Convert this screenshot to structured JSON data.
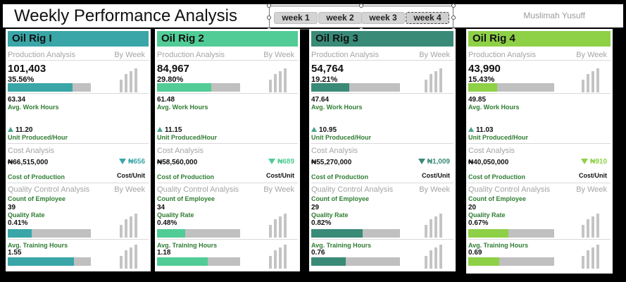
{
  "header": {
    "title": "Weekly Performance Analysis",
    "author": "Muslimah Yusuff",
    "weeks": [
      "week 1",
      "week 2",
      "week 3",
      "week 4"
    ],
    "selected_week": "week 4"
  },
  "common": {
    "production_analysis": "Production Analysis",
    "by_week": "By Week",
    "avg_work_hours": "Avg. Work Hours",
    "unit_produced_hour": "Unit Produced/Hour",
    "cost_analysis": "Cost Analysis",
    "cost_of_production": "Cost of Production",
    "cost_unit": "Cost/Unit",
    "quality_control_analysis": "Quality Control Analysis",
    "count_of_employee": "Count of Employee",
    "quality_rate": "Quality Rate",
    "avg_training_hours": "Avg. Training Hours"
  },
  "rigs": [
    {
      "name": "Oil Rig I",
      "color": "#3aa6a8",
      "production": "101,403",
      "production_pct": "35.56%",
      "production_fraction": 0.78,
      "avg_work_hours": "63.34",
      "unit_per_hour": "11.20",
      "cost_of_production": "₦66,515,000",
      "cost_per_unit": "₦656",
      "cost_unit_color": "#3aa6a8",
      "employees": "39",
      "quality_rate": "0.41%",
      "quality_fraction": 0.29,
      "training_hours": "1.55",
      "training_fraction": 0.8
    },
    {
      "name": "Oil Rig 2",
      "color": "#52cc96",
      "production": "84,967",
      "production_pct": "29.80%",
      "production_fraction": 0.65,
      "avg_work_hours": "61.48",
      "unit_per_hour": "11.15",
      "cost_of_production": "₦58,560,000",
      "cost_per_unit": "₦689",
      "cost_unit_color": "#52cc96",
      "employees": "34",
      "quality_rate": "0.48%",
      "quality_fraction": 0.34,
      "training_hours": "1.18",
      "training_fraction": 0.61
    },
    {
      "name": "Oil Rig 3",
      "color": "#3a8a78",
      "production": "54,764",
      "production_pct": "19.21%",
      "production_fraction": 0.43,
      "avg_work_hours": "47.64",
      "unit_per_hour": "10.95",
      "cost_of_production": "₦55,270,000",
      "cost_per_unit": "₦1,009",
      "cost_unit_color": "#3a8a78",
      "employees": "29",
      "quality_rate": "0.82%",
      "quality_fraction": 0.58,
      "training_hours": "0.76",
      "training_fraction": 0.39
    },
    {
      "name": "Oil Rig 4",
      "color": "#8ed046",
      "production": "43,990",
      "production_pct": "15.43%",
      "production_fraction": 0.34,
      "avg_work_hours": "49.85",
      "unit_per_hour": "11.03",
      "cost_of_production": "₦40,050,000",
      "cost_per_unit": "₦910",
      "cost_unit_color": "#8ed046",
      "employees": "20",
      "quality_rate": "0.67%",
      "quality_fraction": 0.47,
      "training_hours": "0.69",
      "training_fraction": 0.36
    }
  ]
}
